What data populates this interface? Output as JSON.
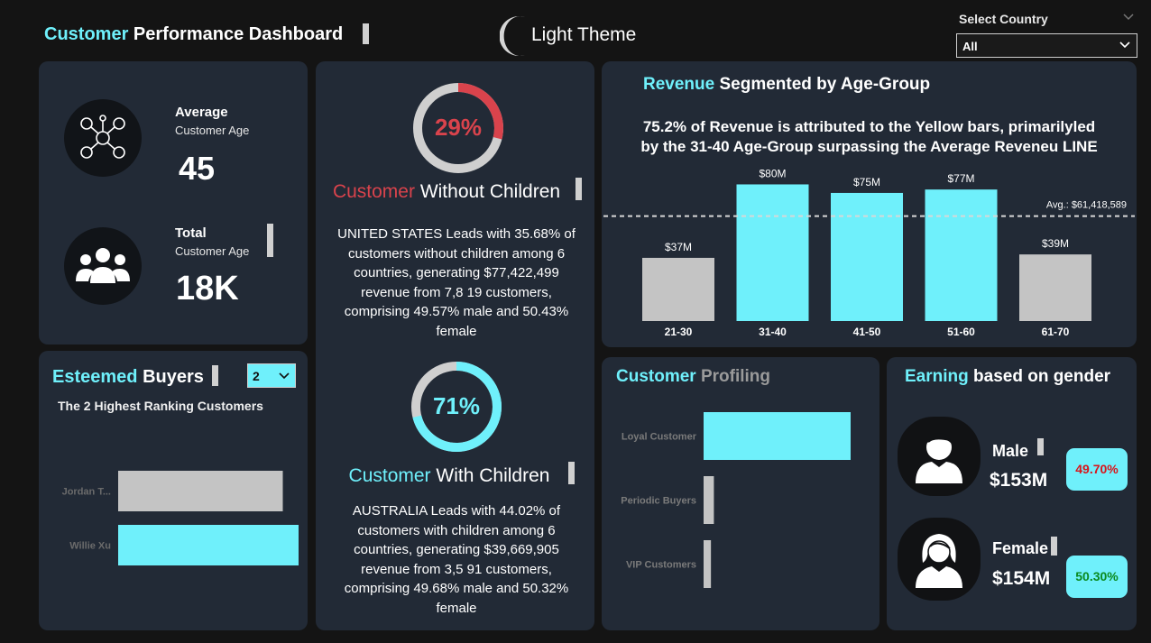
{
  "header": {
    "title_accent": "Customer",
    "title_rest": "Performance Dashboard",
    "theme_label": "Light Theme",
    "country_label": "Select Country",
    "country_value": "All"
  },
  "kpi": {
    "avg_title": "Average",
    "avg_sub": "Customer Age",
    "avg_value": "45",
    "total_title": "Total",
    "total_sub": "Customer Age",
    "total_value": "18K"
  },
  "without_children": {
    "percent": 29,
    "percent_label": "29%",
    "title_accent": "Customer",
    "title_rest": "Without Children",
    "desc_lines": [
      "UNITED STATES Leads with 35.68% of",
      "customers without children among 6",
      "countries, generating $77,422,499",
      "revenue from 7,8 19 customers,",
      "comprising 49.57% male and 50.43%",
      "female"
    ]
  },
  "with_children": {
    "percent": 71,
    "percent_label": "71%",
    "title_accent": "Customer",
    "title_rest": "With Children",
    "desc_lines": [
      "AUSTRALIA Leads with 44.02% of",
      "customers with children among 6",
      "countries, generating $39,669,905",
      "revenue from 3,5 91 customers,",
      "comprising 49.68% male and 50.32%",
      "female"
    ]
  },
  "esteemed": {
    "title_accent": "Esteemed",
    "title_rest": "Buyers",
    "dropdown_value": "2",
    "subtitle": "The 2 Highest Ranking Customers"
  },
  "profiling": {
    "title_accent": "Customer",
    "title_rest": "Profiling"
  },
  "earning": {
    "title_accent": "Earning",
    "title_rest": "based on gender",
    "male_label": "Male",
    "male_value": "$153M",
    "male_pct": "49.70%",
    "female_label": "Female",
    "female_value": "$154M",
    "female_pct": "50.30%"
  },
  "revenue": {
    "title_accent": "Revenue",
    "title_rest": "Segmented by Age-Group",
    "insight_line1": "75.2% of Revenue is attributed to the Yellow bars, primarilyled",
    "insight_line2": "by the 31-40 Age-Group surpassing the Average Reveneu LINE"
  },
  "colors": {
    "accent": "#6ff0fb",
    "gray_bar": "#c4c4c4",
    "red": "#d9434c",
    "card": "#222a36"
  },
  "chart_data": [
    {
      "type": "bar",
      "categories": [
        "21-30",
        "31-40",
        "41-50",
        "51-60",
        "61-70"
      ],
      "values": [
        37,
        80,
        75,
        77,
        39
      ],
      "data_labels": [
        "$37M",
        "$80M",
        "$75M",
        "$77M",
        "$39M"
      ],
      "highlight": [
        false,
        true,
        true,
        true,
        false
      ],
      "average": 61.418589,
      "average_label": "Avg.: $61,418,589",
      "ylim": [
        0,
        85
      ]
    },
    {
      "type": "bar",
      "orientation": "horizontal",
      "categories": [
        "Jordan T...",
        "Willie Xu"
      ],
      "values": [
        0.86,
        0.9
      ],
      "colors": [
        "#c4c4c4",
        "#6ff0fb"
      ]
    },
    {
      "type": "bar",
      "orientation": "horizontal",
      "categories": [
        "Loyal Customer",
        "Periodic Buyers",
        "VIP Customers"
      ],
      "values": [
        1.0,
        0.07,
        0.05
      ],
      "colors": [
        "#6ff0fb",
        "#c4c4c4",
        "#c4c4c4"
      ]
    }
  ]
}
